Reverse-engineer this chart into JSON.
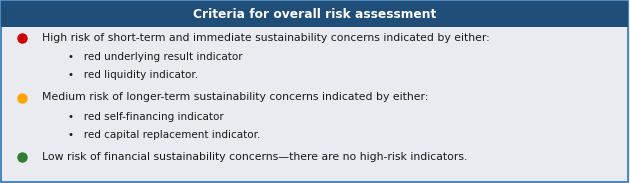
{
  "header_text": "Criteria for overall risk assessment",
  "header_bg_color": "#1F4E79",
  "header_text_color": "#FFFFFF",
  "body_bg_color": "#E9EBF0",
  "border_color": "#2E75B6",
  "rows": [
    {
      "dot_color": "#CC0000",
      "main_text": "High risk of short-term and immediate sustainability concerns indicated by either:",
      "bullets": [
        "red underlying result indicator",
        "red liquidity indicator."
      ]
    },
    {
      "dot_color": "#FFA500",
      "main_text": "Medium risk of longer-term sustainability concerns indicated by either:",
      "bullets": [
        "red self-financing indicator",
        "red capital replacement indicator."
      ]
    },
    {
      "dot_color": "#2E7D32",
      "main_text": "Low risk of financial sustainability concerns—there are no high-risk indicators.",
      "bullets": []
    }
  ],
  "figsize": [
    6.3,
    1.83
  ],
  "dpi": 100,
  "text_color": "#1A1A1A",
  "font_size": 7.8,
  "header_font_size": 8.8,
  "bullet_char": "•"
}
